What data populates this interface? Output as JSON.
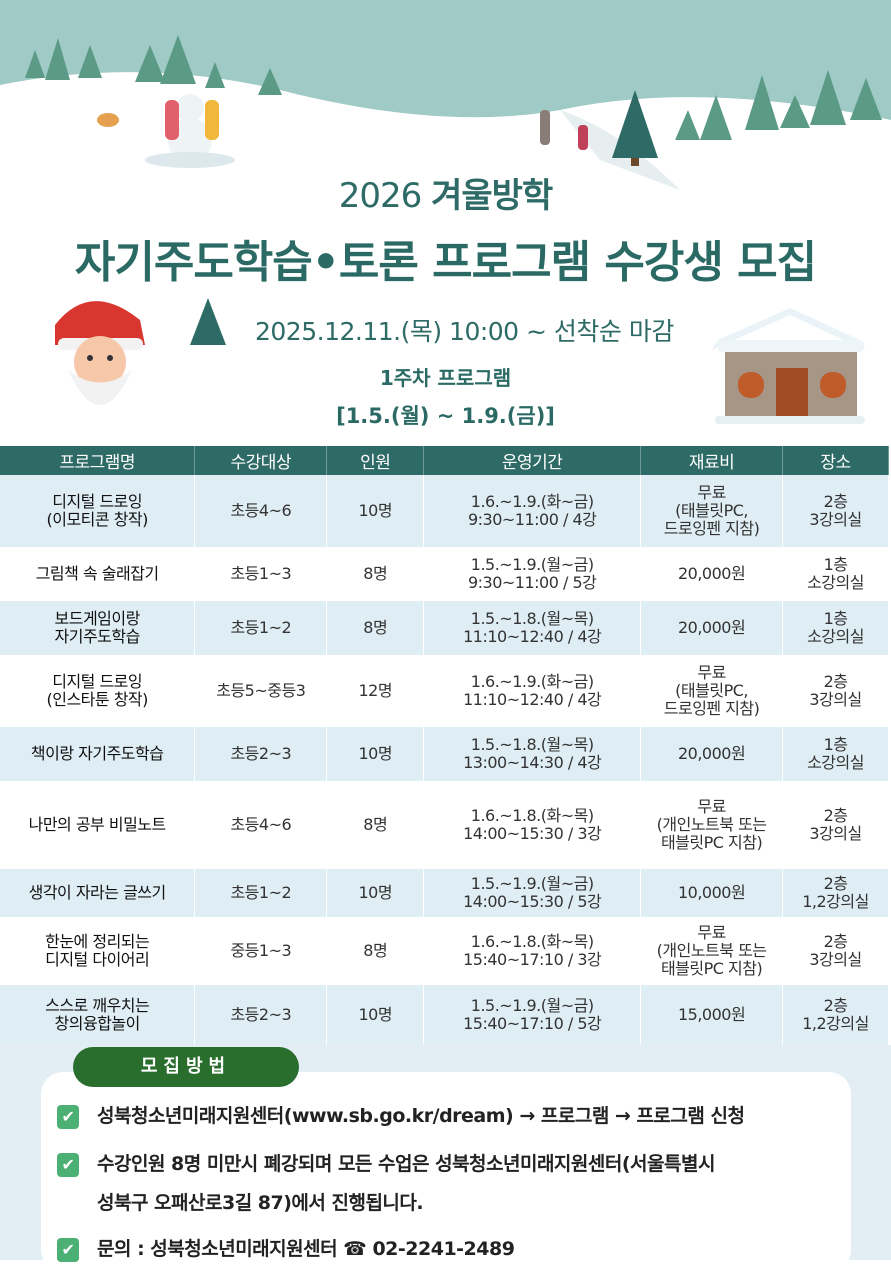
{
  "header": {
    "year": "2026",
    "season": "겨울방학",
    "title": "자기주도학습•토론 프로그램 수강생 모집",
    "date": "2025.12.11.(목) 10:00 ~ 선착순 마감",
    "week": "1주차 프로그램",
    "range": "[1.5.(월) ~ 1.9.(금)]"
  },
  "colors": {
    "header_bg": "#2f6b66",
    "row_alt": "#dfedf4",
    "title": "#2b6a64",
    "pill": "#2a6e2e",
    "check": "#4caf73"
  },
  "table": {
    "columns": [
      "프로그램명",
      "수강대상",
      "인원",
      "운영기간",
      "재료비",
      "장소"
    ],
    "rows": [
      [
        "디지털 드로잉\n(이모티콘 창작)",
        "초등4~6",
        "10명",
        "1.6.~1.9.(화~금)\n9:30~11:00  / 4강",
        "무료\n(태블릿PC,\n드로잉펜 지참)",
        "2층\n3강의실"
      ],
      [
        "그림책 속 술래잡기",
        "초등1~3",
        "8명",
        "1.5.~1.9.(월~금)\n9:30~11:00  / 5강",
        "20,000원",
        "1층\n소강의실"
      ],
      [
        "보드게임이랑\n자기주도학습",
        "초등1~2",
        "8명",
        "1.5.~1.8.(월~목)\n11:10~12:40  / 4강",
        "20,000원",
        "1층\n소강의실"
      ],
      [
        "디지털 드로잉\n(인스타툰 창작)",
        "초등5~중등3",
        "12명",
        "1.6.~1.9.(화~금)\n11:10~12:40  / 4강",
        "무료\n(태블릿PC,\n드로잉펜 지참)",
        "2층\n3강의실"
      ],
      [
        "책이랑 자기주도학습",
        "초등2~3",
        "10명",
        "1.5.~1.8.(월~목)\n13:00~14:30  / 4강",
        "20,000원",
        "1층\n소강의실"
      ],
      [
        "나만의 공부 비밀노트",
        "초등4~6",
        "8명",
        "1.6.~1.8.(화~목)\n14:00~15:30  / 3강",
        "무료\n(개인노트북 또는\n태블릿PC 지참)",
        "2층\n3강의실"
      ],
      [
        "생각이 자라는 글쓰기",
        "초등1~2",
        "10명",
        "1.5.~1.9.(월~금)\n14:00~15:30  / 5강",
        "10,000원",
        "2층\n1,2강의실"
      ],
      [
        "한눈에 정리되는\n디지털 다이어리",
        "중등1~3",
        "8명",
        "1.6.~1.8.(화~목)\n15:40~17:10  / 3강",
        "무료\n(개인노트북 또는\n태블릿PC 지참)",
        "2층\n3강의실"
      ],
      [
        "스스로 깨우치는\n창의융합놀이",
        "초등2~3",
        "10명",
        "1.5.~1.9.(월~금)\n15:40~17:10  / 5강",
        "15,000원",
        "2층\n1,2강의실"
      ]
    ]
  },
  "recruit": {
    "label": "모집방법",
    "items": [
      "성북청소년미래지원센터(www.sb.go.kr/dream)  → 프로그램  → 프로그램 신청",
      "수강인원 8명 미만시 폐강되며 모든 수업은 성북청소년미래지원센터(서울특별시",
      "성북구 오패산로3길 87)에서 진행됩니다.",
      "문의 : 성북청소년미래지원센터 ☎ 02-2241-2489"
    ],
    "check_icon": "checkbox-checked-icon"
  }
}
